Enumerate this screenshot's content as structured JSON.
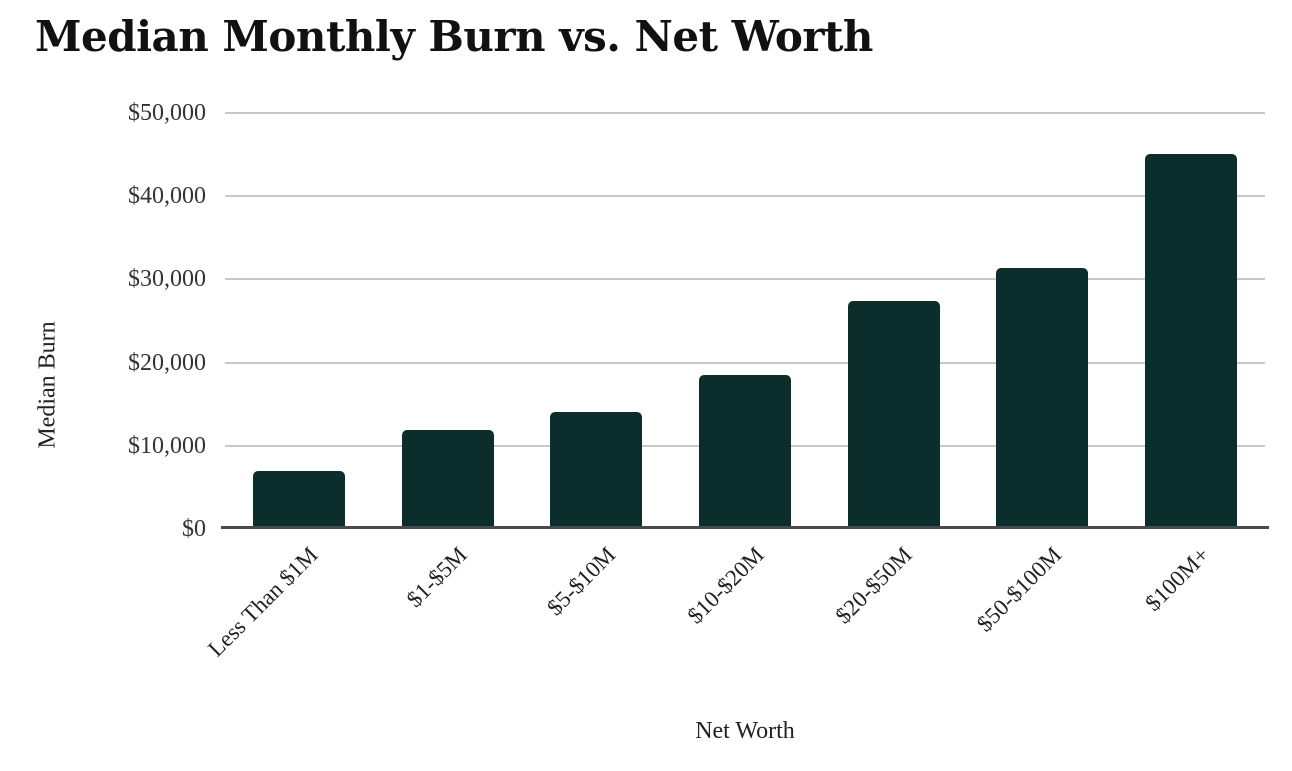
{
  "chart_data": {
    "type": "bar",
    "title": "Median Monthly Burn vs. Net Worth",
    "xlabel": "Net Worth",
    "ylabel": "Median Burn",
    "categories": [
      "Less Than $1M",
      "$1-$5M",
      "$5-$10M",
      "$10-$20M",
      "$20-$50M",
      "$50-$100M",
      "$100M+"
    ],
    "values": [
      6800,
      11800,
      14000,
      18400,
      27300,
      31300,
      45000
    ],
    "ylim": [
      0,
      50000
    ],
    "ytick_step": 10000,
    "ytick_labels": [
      "$0",
      "$10,000",
      "$20,000",
      "$30,000",
      "$40,000",
      "$50,000"
    ],
    "grid": true,
    "legend": "none",
    "colors": {
      "bar": "#0b2e2c",
      "gridline": "#c9c9c9",
      "axis_line": "#4a4a4a",
      "text": "#222222",
      "title": "#111111",
      "background": "#ffffff"
    }
  }
}
